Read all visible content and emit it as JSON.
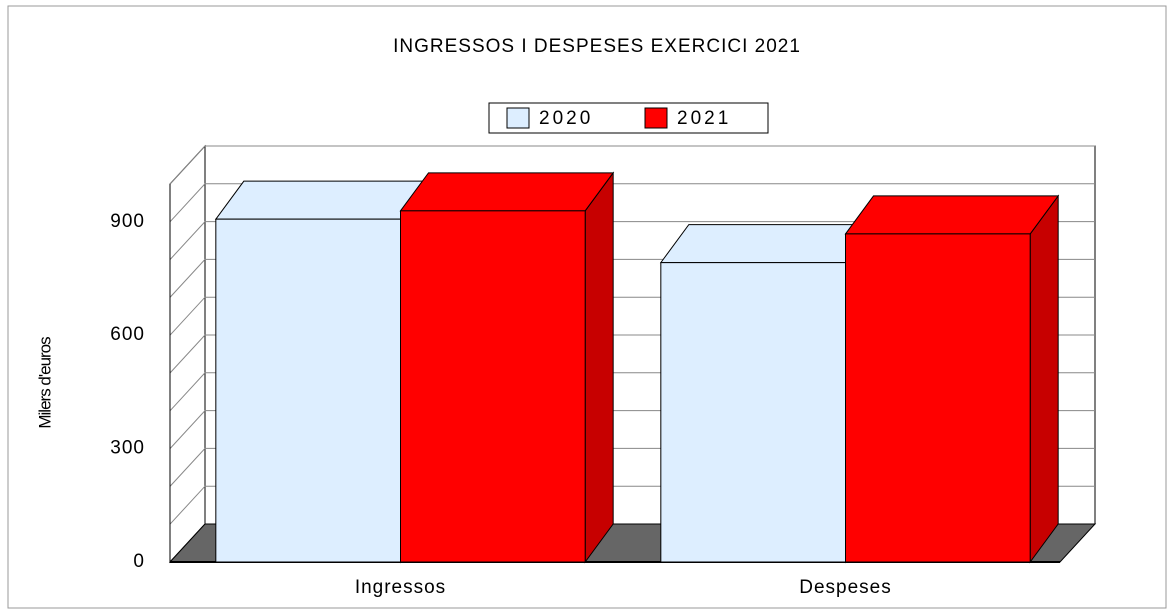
{
  "chart_data": {
    "type": "bar3d",
    "title": "INGRESSOS I DESPESES EXERCICI 2021",
    "y_label": "Milers d'euros",
    "categories": [
      "Ingressos",
      "Despeses"
    ],
    "series": [
      {
        "name": "2020",
        "color": "#ddeeff",
        "values": [
          907,
          792
        ]
      },
      {
        "name": "2021",
        "color": "#ff0000",
        "values": [
          929,
          868
        ]
      }
    ],
    "ylim": [
      0,
      1000
    ],
    "yticks": [
      0,
      300,
      600,
      900
    ],
    "yminorticks": [
      100,
      200,
      400,
      500,
      700,
      800,
      1000
    ],
    "grid": true
  }
}
